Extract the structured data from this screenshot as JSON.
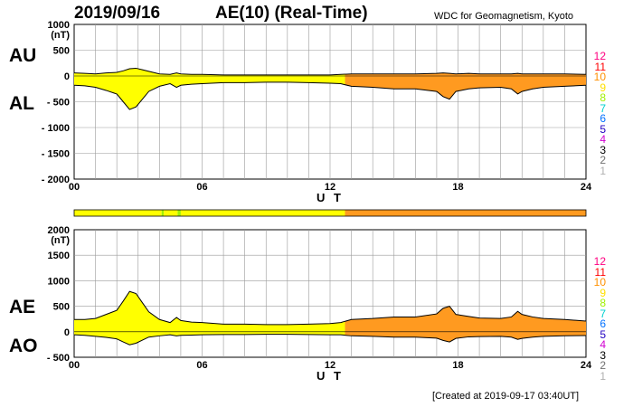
{
  "header": {
    "date": "2019/09/16",
    "title": "AE(10) (Real-Time)",
    "institution": "WDC for Geomagnetism, Kyoto"
  },
  "footer": {
    "created": "[Created at 2019-09-17 03:40UT]"
  },
  "level_legend": [
    {
      "label": "12",
      "color": "#ff0080"
    },
    {
      "label": "11",
      "color": "#ff0000"
    },
    {
      "label": "10",
      "color": "#ff9000"
    },
    {
      "label": "9",
      "color": "#ffe000"
    },
    {
      "label": "8",
      "color": "#a0f000"
    },
    {
      "label": "7",
      "color": "#00d0d0"
    },
    {
      "label": "6",
      "color": "#0070ff"
    },
    {
      "label": "5",
      "color": "#2000c0"
    },
    {
      "label": "4",
      "color": "#d000d0"
    },
    {
      "label": "3",
      "color": "#000000"
    },
    {
      "label": "2",
      "color": "#707070"
    },
    {
      "label": "1",
      "color": "#b0b0b0"
    }
  ],
  "station_bar": {
    "segments": [
      {
        "from": 0,
        "to": 4.1,
        "color": "#ffff00"
      },
      {
        "from": 4.1,
        "to": 4.2,
        "color": "#a0f000"
      },
      {
        "from": 4.2,
        "to": 4.85,
        "color": "#ffff00"
      },
      {
        "from": 4.85,
        "to": 5.0,
        "color": "#a0f000"
      },
      {
        "from": 5.0,
        "to": 12.7,
        "color": "#ffff00"
      },
      {
        "from": 12.7,
        "to": 24,
        "color": "#ff9a20"
      }
    ]
  },
  "chart_data": [
    {
      "type": "area",
      "series_labels": [
        "AU",
        "AL"
      ],
      "yunit": "(nT)",
      "xlabel": "U T",
      "xlim": [
        0,
        24
      ],
      "ylim": [
        -2000,
        1000
      ],
      "yticks": [
        1000,
        500,
        0,
        -500,
        -1000,
        -1500,
        -2000
      ],
      "ytick_labels": [
        "1000",
        "500",
        "0",
        "- 500",
        "- 1000",
        "- 1500",
        "- 2000"
      ],
      "xticks": [
        0,
        6,
        12,
        18,
        24
      ],
      "xtick_labels": [
        "00",
        "06",
        "12",
        "18",
        "24"
      ],
      "x": [
        0,
        0.5,
        1,
        1.5,
        2,
        2.3,
        2.6,
        2.9,
        3.2,
        3.5,
        4,
        4.5,
        4.8,
        5,
        5.5,
        6,
        7,
        8,
        9,
        10,
        11,
        12,
        12.5,
        13,
        14,
        15,
        16,
        17,
        17.3,
        17.6,
        17.9,
        18.5,
        19,
        20,
        20.5,
        20.8,
        21,
        21.5,
        22,
        23,
        24
      ],
      "series": [
        {
          "values": [
            60,
            50,
            40,
            60,
            70,
            100,
            140,
            150,
            120,
            90,
            40,
            30,
            60,
            40,
            30,
            30,
            20,
            20,
            20,
            20,
            20,
            20,
            30,
            40,
            40,
            40,
            40,
            50,
            60,
            50,
            40,
            50,
            40,
            40,
            40,
            50,
            40,
            40,
            40,
            40,
            30
          ]
        },
        {
          "values": [
            -180,
            -190,
            -220,
            -280,
            -350,
            -500,
            -650,
            -600,
            -450,
            -300,
            -200,
            -150,
            -220,
            -180,
            -160,
            -150,
            -130,
            -130,
            -120,
            -120,
            -130,
            -140,
            -150,
            -200,
            -220,
            -250,
            -250,
            -300,
            -400,
            -450,
            -300,
            -250,
            -230,
            -220,
            -250,
            -350,
            -300,
            -250,
            -220,
            -200,
            -180
          ]
        }
      ]
    },
    {
      "type": "area",
      "series_labels": [
        "AE",
        "AO"
      ],
      "yunit": "(nT)",
      "xlabel": "U T",
      "xlim": [
        0,
        24
      ],
      "ylim": [
        -500,
        2000
      ],
      "yticks": [
        2000,
        1500,
        1000,
        500,
        0,
        -500
      ],
      "ytick_labels": [
        "2000",
        "1500",
        "1000",
        "500",
        "0",
        "- 500"
      ],
      "xticks": [
        0,
        6,
        12,
        18,
        24
      ],
      "xtick_labels": [
        "00",
        "06",
        "12",
        "18",
        "24"
      ],
      "x": [
        0,
        0.5,
        1,
        1.5,
        2,
        2.3,
        2.6,
        2.9,
        3.2,
        3.5,
        4,
        4.5,
        4.8,
        5,
        5.5,
        6,
        7,
        8,
        9,
        10,
        11,
        12,
        12.5,
        13,
        14,
        15,
        16,
        17,
        17.3,
        17.6,
        17.9,
        18.5,
        19,
        20,
        20.5,
        20.8,
        21,
        21.5,
        22,
        23,
        24
      ],
      "series": [
        {
          "values": [
            240,
            240,
            260,
            340,
            420,
            600,
            790,
            750,
            570,
            390,
            240,
            180,
            280,
            220,
            190,
            180,
            150,
            150,
            140,
            140,
            150,
            160,
            180,
            240,
            260,
            290,
            290,
            350,
            460,
            500,
            340,
            300,
            270,
            260,
            290,
            400,
            340,
            290,
            260,
            240,
            210
          ]
        },
        {
          "values": [
            -60,
            -70,
            -90,
            -110,
            -140,
            -200,
            -255,
            -225,
            -165,
            -105,
            -80,
            -60,
            -80,
            -70,
            -65,
            -60,
            -55,
            -55,
            -50,
            -50,
            -55,
            -60,
            -60,
            -80,
            -90,
            -105,
            -105,
            -125,
            -170,
            -200,
            -130,
            -100,
            -95,
            -90,
            -105,
            -150,
            -130,
            -105,
            -90,
            -80,
            -75
          ]
        }
      ]
    }
  ]
}
